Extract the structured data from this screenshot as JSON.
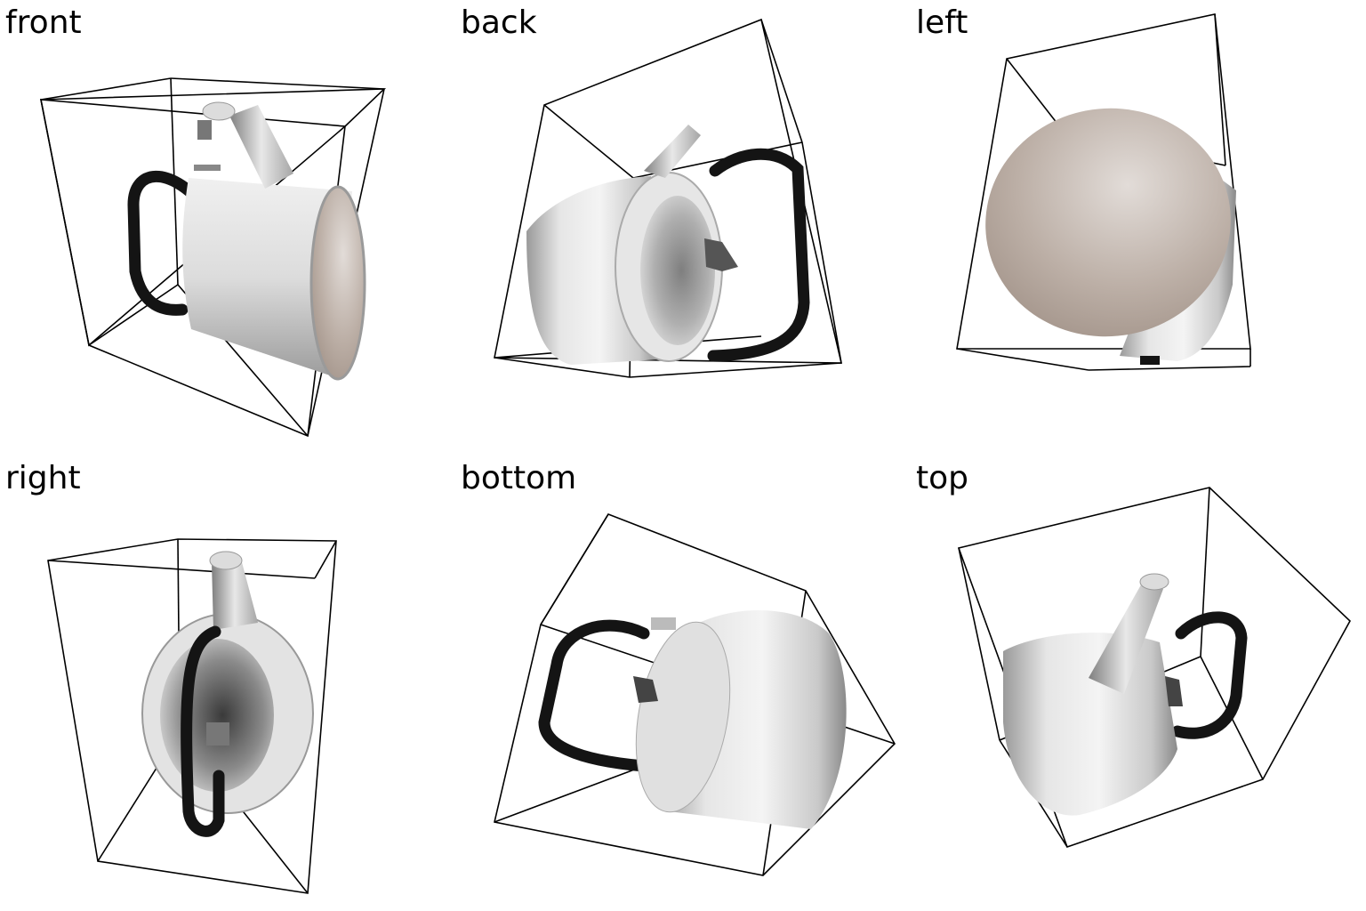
{
  "figure": {
    "views": [
      {
        "id": "front",
        "label": "front"
      },
      {
        "id": "back",
        "label": "back"
      },
      {
        "id": "left",
        "label": "left"
      },
      {
        "id": "right",
        "label": "right"
      },
      {
        "id": "bottom",
        "label": "bottom"
      },
      {
        "id": "top",
        "label": "top"
      }
    ]
  },
  "colors": {
    "box_edges": "#000000",
    "kettle_body": "#d9d9d9",
    "kettle_shadow": "#8f8f8f",
    "handle": "#141414",
    "lid_beige": "#b3a59c",
    "background": "#ffffff"
  },
  "icons": [
    "bounding-box",
    "kettle"
  ]
}
